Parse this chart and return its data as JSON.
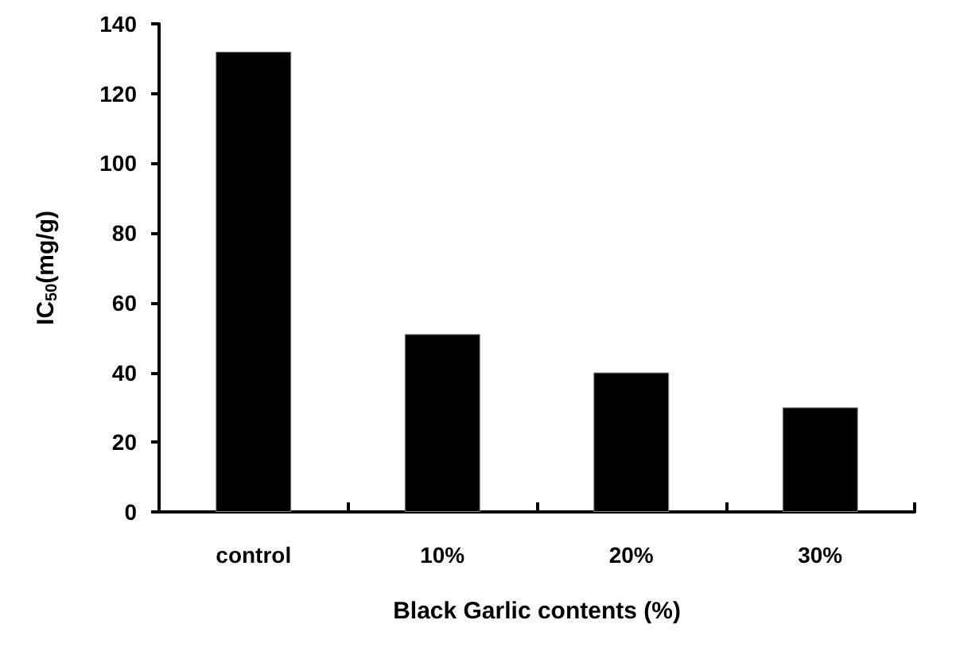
{
  "chart_data": {
    "type": "bar",
    "xlabel": "Black Garlic contents (%)",
    "ylabel": "IC$_{50}$(mg/g)",
    "categories": [
      "control",
      "10%",
      "20%",
      "30%"
    ],
    "values": [
      132,
      51,
      40,
      30
    ],
    "color": "#000000",
    "ylim": [
      0,
      140
    ],
    "yticks": [
      0,
      20,
      40,
      60,
      80,
      100,
      120,
      140
    ],
    "grid": false
  }
}
